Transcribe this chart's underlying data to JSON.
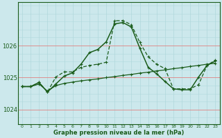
{
  "background_color": "#cce8ec",
  "line_color": "#1a5c1a",
  "xlabel": "Graphe pression niveau de la mer (hPa)",
  "yticks": [
    1024,
    1025,
    1026
  ],
  "xtick_labels": [
    "0",
    "1",
    "2",
    "3",
    "4",
    "5",
    "6",
    "7",
    "8",
    "9",
    "10",
    "11",
    "12",
    "13",
    "14",
    "15",
    "16",
    "17",
    "18",
    "19",
    "20",
    "21",
    "22",
    "23"
  ],
  "xlim": [
    -0.5,
    23.5
  ],
  "ylim": [
    1023.55,
    1027.35
  ],
  "line1_x": [
    0,
    1,
    2,
    3,
    4,
    5,
    6,
    7,
    8,
    9,
    10,
    11,
    12,
    13,
    14,
    15,
    16,
    17,
    18,
    19,
    20,
    21,
    22,
    23
  ],
  "line1_y": [
    1024.72,
    1024.72,
    1024.8,
    1024.58,
    1024.75,
    1024.82,
    1024.86,
    1024.9,
    1024.93,
    1024.96,
    1025.0,
    1025.03,
    1025.07,
    1025.1,
    1025.14,
    1025.17,
    1025.21,
    1025.24,
    1025.28,
    1025.31,
    1025.35,
    1025.38,
    1025.42,
    1025.45
  ],
  "line2_x": [
    0,
    1,
    2,
    3,
    4,
    5,
    6,
    7,
    8,
    9,
    10,
    11,
    12,
    13,
    14,
    15,
    16,
    17,
    18,
    19,
    20,
    21,
    22,
    23
  ],
  "line2_y": [
    1024.72,
    1024.72,
    1024.85,
    1024.55,
    1024.8,
    1025.05,
    1025.15,
    1025.42,
    1025.78,
    1025.88,
    1026.12,
    1026.68,
    1026.72,
    1026.58,
    1025.92,
    1025.32,
    1025.12,
    1024.88,
    1024.65,
    1024.62,
    1024.62,
    1025.02,
    1025.38,
    1025.52
  ],
  "line3_x": [
    0,
    1,
    2,
    3,
    4,
    5,
    6,
    7,
    8,
    9,
    10,
    11,
    12,
    13,
    14,
    15,
    16,
    17,
    18,
    19,
    20,
    21,
    22,
    23
  ],
  "line3_y": [
    1024.72,
    1024.72,
    1024.85,
    1024.55,
    1025.02,
    1025.18,
    1025.18,
    1025.32,
    1025.38,
    1025.42,
    1025.48,
    1026.78,
    1026.78,
    1026.65,
    1026.1,
    1025.65,
    1025.42,
    1025.28,
    1024.65,
    1024.65,
    1024.65,
    1024.78,
    1025.38,
    1025.55
  ],
  "vgrid_color": "#b0d8dc",
  "hgrid_color": "#e08080",
  "label_color": "#1a5c1a",
  "xlabel_fontsize": 6.0,
  "ytick_fontsize": 6.0,
  "xtick_fontsize": 4.5
}
